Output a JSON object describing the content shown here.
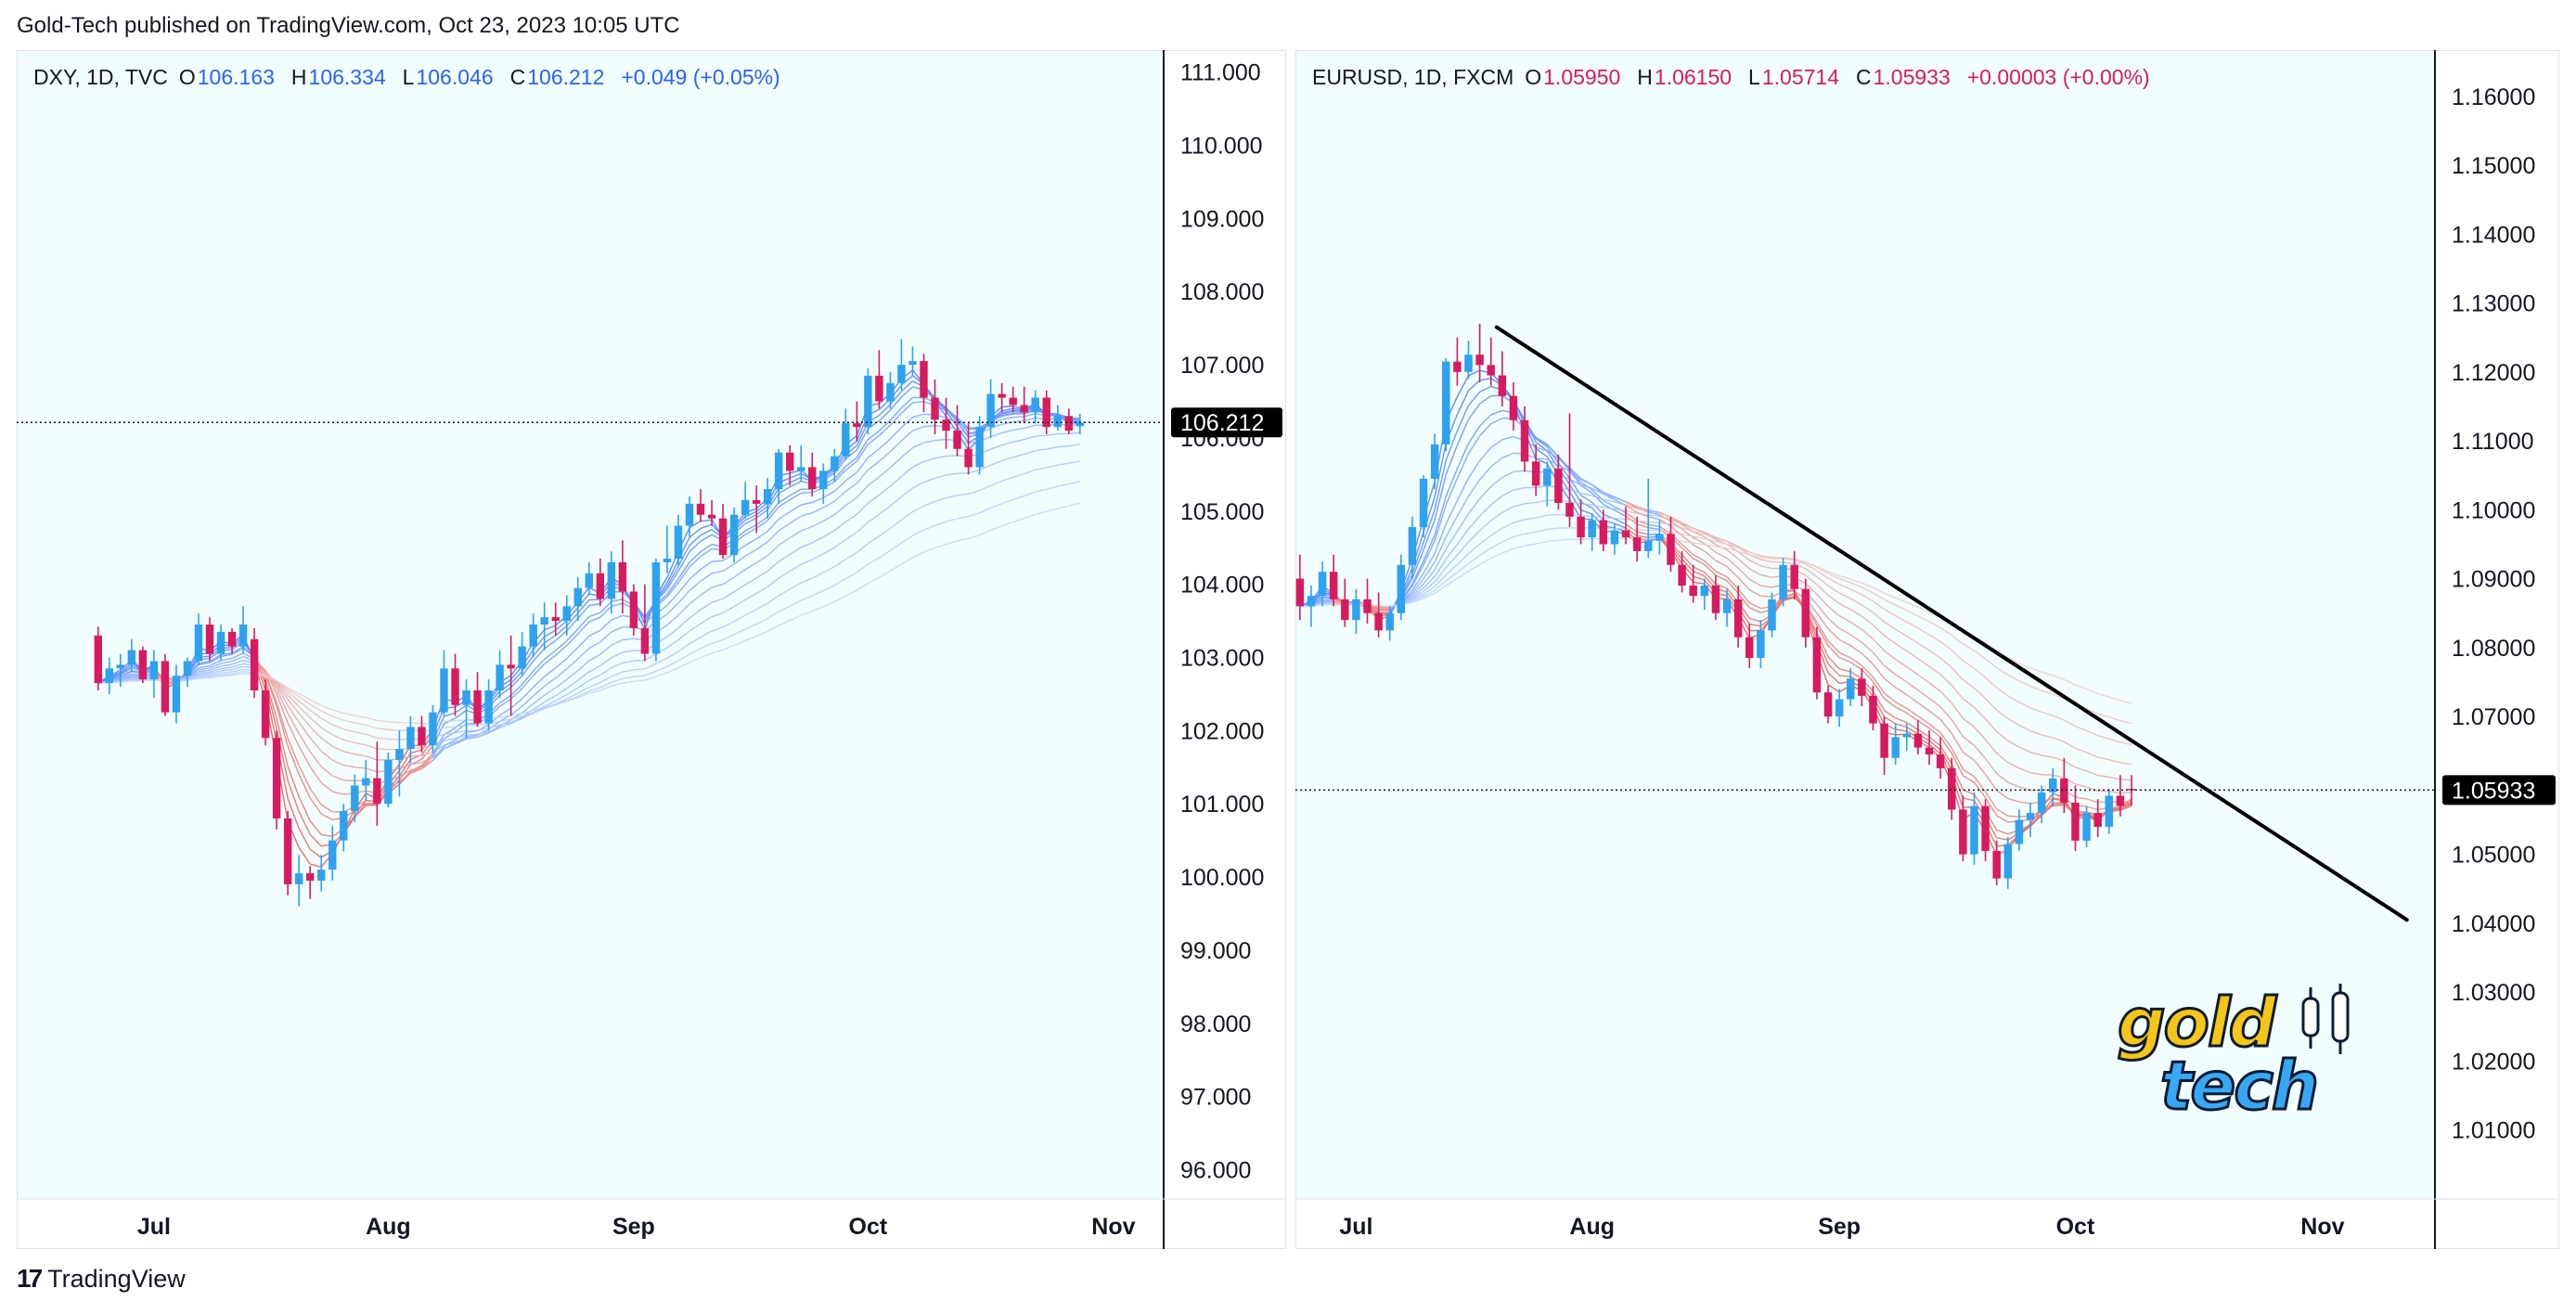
{
  "header": {
    "caption": "Gold-Tech published on TradingView.com, Oct 23, 2023 10:05 UTC"
  },
  "footer": {
    "brand": "TradingView"
  },
  "colors": {
    "up": "#2ea2ef",
    "down": "#d81b60",
    "ribbon_blue": "#2962ff",
    "ribbon_red": "#e53935",
    "pane_bg": "#f2fdfd",
    "trendline": "#000000"
  },
  "chart_data": [
    {
      "type": "candlestick",
      "symbol": "DXY, 1D, TVC",
      "legend": {
        "o_label": "O",
        "o": "106.163",
        "h_label": "H",
        "h": "106.334",
        "l_label": "L",
        "l": "106.046",
        "c_label": "C",
        "c": "106.212",
        "change": "+0.049 (+0.05%)",
        "color": "#2962ff"
      },
      "last_price": "106.212",
      "ylim": [
        95.6,
        111.3
      ],
      "y_ticks": [
        "111.000",
        "110.000",
        "109.000",
        "108.000",
        "107.000",
        "106.000",
        "105.000",
        "104.000",
        "103.000",
        "102.000",
        "101.000",
        "100.000",
        "99.000",
        "98.000",
        "97.000",
        "96.000"
      ],
      "x_ticks": [
        "Jul",
        "Aug",
        "Sep",
        "Oct",
        "Nov"
      ],
      "x_tick_index": [
        5,
        26,
        48,
        69,
        91
      ],
      "x_range": [
        -7.3,
        95.5
      ],
      "ribbon": {
        "n_lines": 14,
        "min_period": 3,
        "max_period": 60
      },
      "candles": [
        [
          103.3,
          103.42,
          102.55,
          102.65
        ],
        [
          102.65,
          103.0,
          102.5,
          102.85
        ],
        [
          102.85,
          103.05,
          102.6,
          102.9
        ],
        [
          102.9,
          103.25,
          102.8,
          103.1
        ],
        [
          103.1,
          103.15,
          102.65,
          102.7
        ],
        [
          102.7,
          103.1,
          102.45,
          102.95
        ],
        [
          102.95,
          103.05,
          102.2,
          102.25
        ],
        [
          102.25,
          102.9,
          102.1,
          102.75
        ],
        [
          102.75,
          103.0,
          102.6,
          102.95
        ],
        [
          102.95,
          103.6,
          102.9,
          103.45
        ],
        [
          103.45,
          103.55,
          102.95,
          103.05
        ],
        [
          103.05,
          103.45,
          102.95,
          103.35
        ],
        [
          103.35,
          103.4,
          103.05,
          103.15
        ],
        [
          103.15,
          103.7,
          103.05,
          103.45
        ],
        [
          103.25,
          103.4,
          102.45,
          102.55
        ],
        [
          102.55,
          102.7,
          101.8,
          101.9
        ],
        [
          101.9,
          102.0,
          100.65,
          100.8
        ],
        [
          100.8,
          100.9,
          99.75,
          99.9
        ],
        [
          99.9,
          100.3,
          99.6,
          100.05
        ],
        [
          100.05,
          100.15,
          99.7,
          99.95
        ],
        [
          99.95,
          100.3,
          99.8,
          100.1
        ],
        [
          100.1,
          100.7,
          99.95,
          100.5
        ],
        [
          100.5,
          101.0,
          100.35,
          100.9
        ],
        [
          100.9,
          101.4,
          100.75,
          101.25
        ],
        [
          101.25,
          101.6,
          101.05,
          101.35
        ],
        [
          101.35,
          101.85,
          100.7,
          101.0
        ],
        [
          101.0,
          101.7,
          100.95,
          101.6
        ],
        [
          101.6,
          102.0,
          101.1,
          101.75
        ],
        [
          101.75,
          102.2,
          101.55,
          102.05
        ],
        [
          102.05,
          102.2,
          101.7,
          101.8
        ],
        [
          101.8,
          102.35,
          101.7,
          102.25
        ],
        [
          102.25,
          103.1,
          102.2,
          102.85
        ],
        [
          102.85,
          103.05,
          102.2,
          102.35
        ],
        [
          102.35,
          102.7,
          101.9,
          102.55
        ],
        [
          102.55,
          102.8,
          102.05,
          102.1
        ],
        [
          102.1,
          102.7,
          102.0,
          102.55
        ],
        [
          102.55,
          103.1,
          102.45,
          102.9
        ],
        [
          102.9,
          103.3,
          102.2,
          102.85
        ],
        [
          102.85,
          103.35,
          102.75,
          103.15
        ],
        [
          103.15,
          103.6,
          103.0,
          103.45
        ],
        [
          103.45,
          103.75,
          103.1,
          103.55
        ],
        [
          103.55,
          103.75,
          103.3,
          103.5
        ],
        [
          103.5,
          103.85,
          103.3,
          103.7
        ],
        [
          103.7,
          104.1,
          103.5,
          103.95
        ],
        [
          103.95,
          104.3,
          103.85,
          104.15
        ],
        [
          104.15,
          104.35,
          103.7,
          103.8
        ],
        [
          103.8,
          104.45,
          103.6,
          104.3
        ],
        [
          104.3,
          104.6,
          103.6,
          103.9
        ],
        [
          103.9,
          104.0,
          103.3,
          103.4
        ],
        [
          103.4,
          104.0,
          102.95,
          103.05
        ],
        [
          103.05,
          104.35,
          102.95,
          104.3
        ],
        [
          104.3,
          104.8,
          104.15,
          104.35
        ],
        [
          104.35,
          104.95,
          104.25,
          104.8
        ],
        [
          104.8,
          105.2,
          104.65,
          105.1
        ],
        [
          105.1,
          105.3,
          104.85,
          104.95
        ],
        [
          104.95,
          105.15,
          104.8,
          104.9
        ],
        [
          104.9,
          105.1,
          104.35,
          104.4
        ],
        [
          104.4,
          105.05,
          104.3,
          104.95
        ],
        [
          104.95,
          105.4,
          104.9,
          105.15
        ],
        [
          105.15,
          105.35,
          104.7,
          105.1
        ],
        [
          105.1,
          105.45,
          104.9,
          105.3
        ],
        [
          105.3,
          105.85,
          105.1,
          105.8
        ],
        [
          105.8,
          105.9,
          105.35,
          105.55
        ],
        [
          105.55,
          105.9,
          105.4,
          105.6
        ],
        [
          105.6,
          105.8,
          105.2,
          105.3
        ],
        [
          105.3,
          105.65,
          105.1,
          105.55
        ],
        [
          105.55,
          105.85,
          105.4,
          105.75
        ],
        [
          105.75,
          106.4,
          105.7,
          106.2
        ],
        [
          106.2,
          106.5,
          105.95,
          106.15
        ],
        [
          106.15,
          106.95,
          106.05,
          106.85
        ],
        [
          106.85,
          107.2,
          106.4,
          106.5
        ],
        [
          106.5,
          106.9,
          106.4,
          106.75
        ],
        [
          106.75,
          107.35,
          106.65,
          107.0
        ],
        [
          107.0,
          107.25,
          106.85,
          107.05
        ],
        [
          107.05,
          107.15,
          106.35,
          106.55
        ],
        [
          106.55,
          106.8,
          106.05,
          106.25
        ],
        [
          106.25,
          106.55,
          105.85,
          106.1
        ],
        [
          106.1,
          106.45,
          105.75,
          105.85
        ],
        [
          105.85,
          106.2,
          105.5,
          105.6
        ],
        [
          105.6,
          106.3,
          105.5,
          106.15
        ],
        [
          106.15,
          106.8,
          106.0,
          106.6
        ],
        [
          106.6,
          106.75,
          106.35,
          106.55
        ],
        [
          106.55,
          106.7,
          106.35,
          106.45
        ],
        [
          106.45,
          106.7,
          106.2,
          106.35
        ],
        [
          106.35,
          106.65,
          106.2,
          106.55
        ],
        [
          106.55,
          106.65,
          106.05,
          106.15
        ],
        [
          106.15,
          106.45,
          106.1,
          106.3
        ],
        [
          106.3,
          106.4,
          106.05,
          106.1
        ],
        [
          106.16,
          106.33,
          106.05,
          106.21
        ]
      ]
    },
    {
      "type": "candlestick",
      "symbol": "EURUSD, 1D, FXCM",
      "legend": {
        "o_label": "O",
        "o": "1.05950",
        "h_label": "H",
        "h": "1.06150",
        "l_label": "L",
        "l": "1.05714",
        "c_label": "C",
        "c": "1.05933",
        "change": "+0.00003 (+0.00%)",
        "color": "#d81b60"
      },
      "last_price": "1.05933",
      "ylim": [
        1.0,
        1.1667
      ],
      "y_ticks": [
        "1.16000",
        "1.15000",
        "1.14000",
        "1.13000",
        "1.12000",
        "1.11000",
        "1.10000",
        "1.09000",
        "1.08000",
        "1.07000",
        "1.06000",
        "1.05000",
        "1.04000",
        "1.03000",
        "1.02000",
        "1.01000"
      ],
      "x_ticks": [
        "Jul",
        "Aug",
        "Sep",
        "Oct",
        "Nov"
      ],
      "x_tick_index": [
        5,
        26,
        48,
        69,
        91
      ],
      "x_range": [
        -0.4,
        101.0
      ],
      "ribbon": {
        "n_lines": 14,
        "min_period": 3,
        "max_period": 60
      },
      "trendline": {
        "start": [
          17.5,
          1.1265
        ],
        "end": [
          98.5,
          1.0405
        ]
      },
      "candles": [
        [
          1.09,
          1.0935,
          1.084,
          1.086
        ],
        [
          1.086,
          1.089,
          1.083,
          1.0875
        ],
        [
          1.0875,
          1.0925,
          1.086,
          1.091
        ],
        [
          1.091,
          1.0935,
          1.086,
          1.087
        ],
        [
          1.087,
          1.09,
          1.083,
          1.084
        ],
        [
          1.084,
          1.0885,
          1.082,
          1.087
        ],
        [
          1.087,
          1.09,
          1.0835,
          1.085
        ],
        [
          1.085,
          1.088,
          1.0815,
          1.0825
        ],
        [
          1.0825,
          1.086,
          1.081,
          1.085
        ],
        [
          1.085,
          1.0935,
          1.084,
          1.092
        ],
        [
          1.092,
          1.099,
          1.09,
          1.0975
        ],
        [
          1.0975,
          1.105,
          1.096,
          1.1045
        ],
        [
          1.1045,
          1.111,
          1.103,
          1.1095
        ],
        [
          1.1095,
          1.122,
          1.1085,
          1.1215
        ],
        [
          1.1215,
          1.125,
          1.118,
          1.12
        ],
        [
          1.12,
          1.1245,
          1.119,
          1.1225
        ],
        [
          1.1225,
          1.127,
          1.1185,
          1.121
        ],
        [
          1.121,
          1.125,
          1.118,
          1.1195
        ],
        [
          1.1195,
          1.123,
          1.115,
          1.1165
        ],
        [
          1.1165,
          1.1185,
          1.1115,
          1.113
        ],
        [
          1.113,
          1.115,
          1.1055,
          1.107
        ],
        [
          1.107,
          1.1095,
          1.102,
          1.1035
        ],
        [
          1.1035,
          1.107,
          1.1005,
          1.106
        ],
        [
          1.106,
          1.108,
          1.1,
          1.101
        ],
        [
          1.101,
          1.114,
          1.0975,
          1.099
        ],
        [
          1.099,
          1.1015,
          1.095,
          1.096
        ],
        [
          1.096,
          1.0995,
          1.094,
          1.0985
        ],
        [
          1.0985,
          1.1,
          1.094,
          1.095
        ],
        [
          1.095,
          1.098,
          1.0935,
          1.097
        ],
        [
          1.097,
          1.1005,
          1.095,
          1.096
        ],
        [
          1.096,
          1.099,
          1.0925,
          1.094
        ],
        [
          1.094,
          1.1045,
          1.093,
          1.0955
        ],
        [
          1.0955,
          1.0985,
          1.0935,
          1.0965
        ],
        [
          1.0965,
          1.099,
          1.091,
          1.092
        ],
        [
          1.092,
          1.094,
          1.088,
          1.089
        ],
        [
          1.089,
          1.092,
          1.0865,
          1.0875
        ],
        [
          1.0875,
          1.09,
          1.0855,
          1.089
        ],
        [
          1.089,
          1.0905,
          1.084,
          1.085
        ],
        [
          1.085,
          1.0885,
          1.083,
          1.087
        ],
        [
          1.087,
          1.089,
          1.08,
          1.0815
        ],
        [
          1.0815,
          1.0835,
          1.077,
          1.0785
        ],
        [
          1.0785,
          1.084,
          1.077,
          1.0825
        ],
        [
          1.0825,
          1.088,
          1.0815,
          1.087
        ],
        [
          1.087,
          1.093,
          1.086,
          1.092
        ],
        [
          1.092,
          1.094,
          1.087,
          1.0885
        ],
        [
          1.0885,
          1.09,
          1.08,
          1.0815
        ],
        [
          1.0815,
          1.083,
          1.0725,
          1.0735
        ],
        [
          1.0735,
          1.0745,
          1.069,
          1.07
        ],
        [
          1.07,
          1.074,
          1.0685,
          1.0725
        ],
        [
          1.0725,
          1.077,
          1.0715,
          1.0755
        ],
        [
          1.0755,
          1.077,
          1.0715,
          1.073
        ],
        [
          1.073,
          1.0745,
          1.068,
          1.069
        ],
        [
          1.069,
          1.07,
          1.0615,
          1.064
        ],
        [
          1.064,
          1.069,
          1.063,
          1.067
        ],
        [
          1.067,
          1.069,
          1.065,
          1.0675
        ],
        [
          1.0675,
          1.0695,
          1.0645,
          1.0655
        ],
        [
          1.0655,
          1.068,
          1.063,
          1.0645
        ],
        [
          1.0645,
          1.067,
          1.061,
          1.0625
        ],
        [
          1.0625,
          1.064,
          1.055,
          1.0565
        ],
        [
          1.0565,
          1.0585,
          1.049,
          1.05
        ],
        [
          1.05,
          1.059,
          1.0485,
          1.057
        ],
        [
          1.057,
          1.058,
          1.049,
          1.0505
        ],
        [
          1.0505,
          1.052,
          1.0455,
          1.0465
        ],
        [
          1.0465,
          1.0525,
          1.045,
          1.0515
        ],
        [
          1.0515,
          1.0565,
          1.0505,
          1.055
        ],
        [
          1.055,
          1.0575,
          1.0525,
          1.056
        ],
        [
          1.056,
          1.06,
          1.0545,
          1.059
        ],
        [
          1.059,
          1.0625,
          1.057,
          1.061
        ],
        [
          1.061,
          1.064,
          1.056,
          1.0575
        ],
        [
          1.0575,
          1.06,
          1.0505,
          1.052
        ],
        [
          1.052,
          1.057,
          1.051,
          1.056
        ],
        [
          1.056,
          1.058,
          1.0525,
          1.054
        ],
        [
          1.054,
          1.0595,
          1.053,
          1.0585
        ],
        [
          1.0585,
          1.0615,
          1.0555,
          1.057
        ],
        [
          1.0595,
          1.0615,
          1.0571,
          1.0593
        ]
      ]
    }
  ]
}
